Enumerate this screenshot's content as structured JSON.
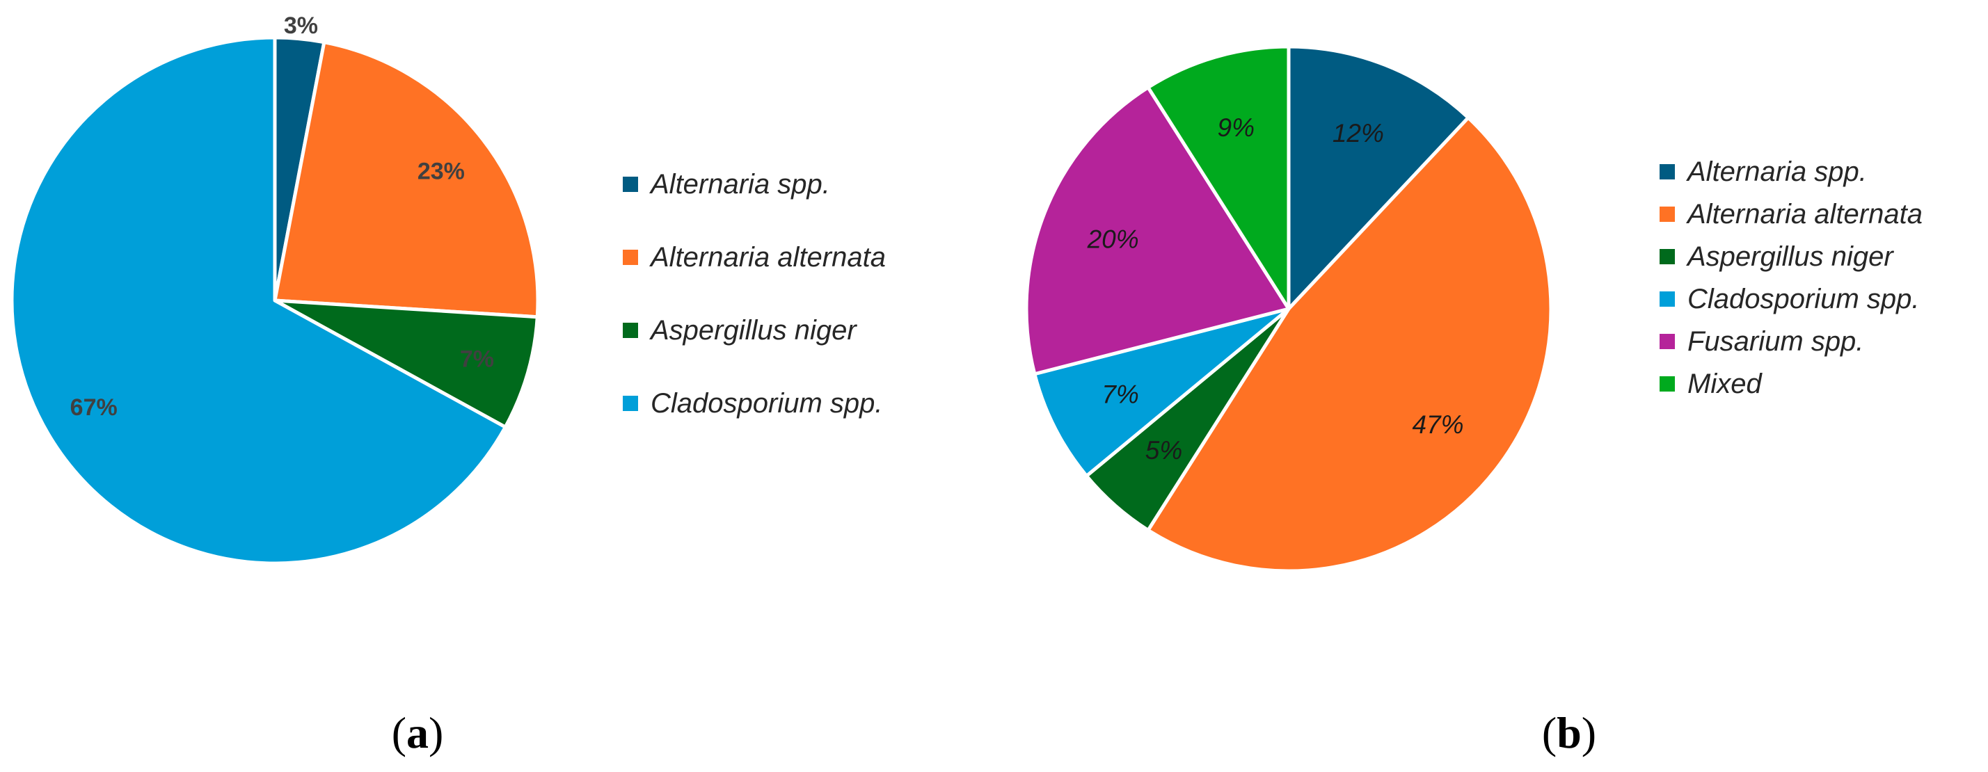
{
  "chart_data": [
    {
      "type": "pie",
      "panel_label": "a",
      "categories": [
        "Alternaria spp.",
        "Alternaria alternata",
        "Aspergillus niger",
        "Cladosporium spp."
      ],
      "values": [
        3,
        23,
        7,
        67
      ],
      "value_labels": [
        "3%",
        "23%",
        "7%",
        "67%"
      ],
      "colors": [
        "#005b82",
        "#ff7224",
        "#006a1c",
        "#009fd9"
      ],
      "legend_position": "right",
      "start_angle": "12 o'clock",
      "direction": "clockwise"
    },
    {
      "type": "pie",
      "panel_label": "b",
      "categories": [
        "Alternaria spp.",
        "Alternaria alternata",
        "Aspergillus niger",
        "Cladosporium spp.",
        "Fusarium spp.",
        "Mixed"
      ],
      "values": [
        12,
        47,
        5,
        7,
        20,
        9
      ],
      "value_labels": [
        "12%",
        "47%",
        "5%",
        "7%",
        "20%",
        "9%"
      ],
      "colors": [
        "#005b82",
        "#ff7224",
        "#006a1c",
        "#009fd9",
        "#b5239a",
        "#00aa1e"
      ],
      "legend_position": "right",
      "start_angle": "12 o'clock",
      "direction": "clockwise"
    }
  ]
}
